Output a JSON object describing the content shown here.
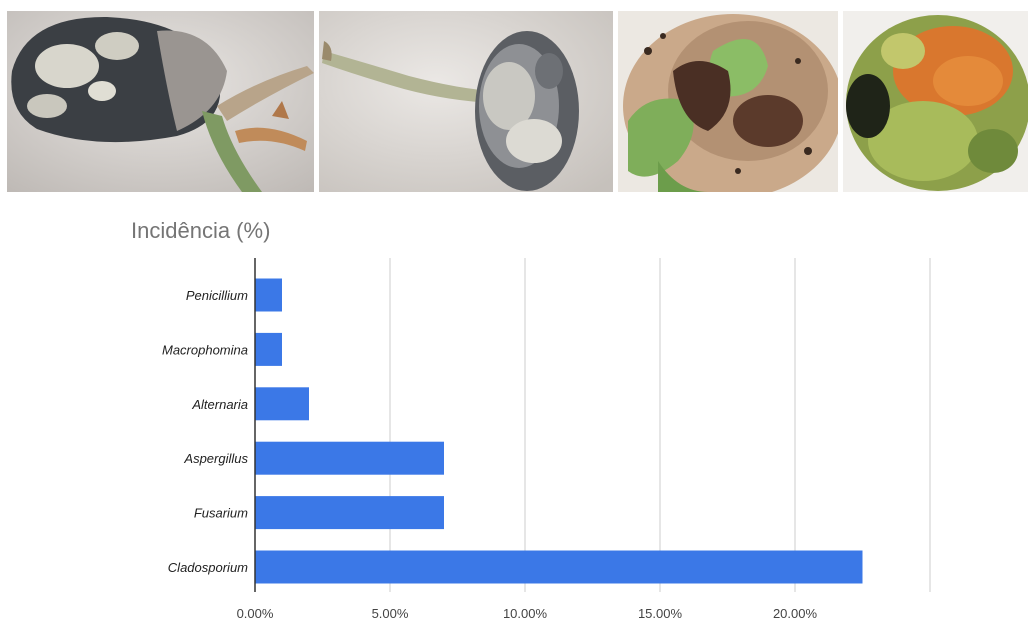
{
  "photos": [
    {
      "name": "seed-with-white-mold-and-sprout"
    },
    {
      "name": "seed-with-gray-white-mold-and-root"
    },
    {
      "name": "seed-with-dark-spores-and-leaves"
    },
    {
      "name": "seed-with-green-orange-mold"
    }
  ],
  "chart_data": {
    "type": "bar",
    "orientation": "horizontal",
    "title": "Incidência (%)",
    "xlabel": "",
    "ylabel": "",
    "categories": [
      "Penicillium",
      "Macrophomina",
      "Alternaria",
      "Aspergillus",
      "Fusarium",
      "Cladosporium"
    ],
    "values": [
      1.0,
      1.0,
      2.0,
      7.0,
      7.0,
      22.5
    ],
    "xlim": [
      0,
      25
    ],
    "x_ticks": [
      "0.00%",
      "5.00%",
      "10.00%",
      "15.00%",
      "20.00%"
    ],
    "x_tick_values": [
      0,
      5,
      10,
      15,
      20
    ],
    "grid": true,
    "legend": "none",
    "bar_color": "#3b78e7",
    "grid_color": "#cccccc",
    "axis_color": "#333333"
  }
}
